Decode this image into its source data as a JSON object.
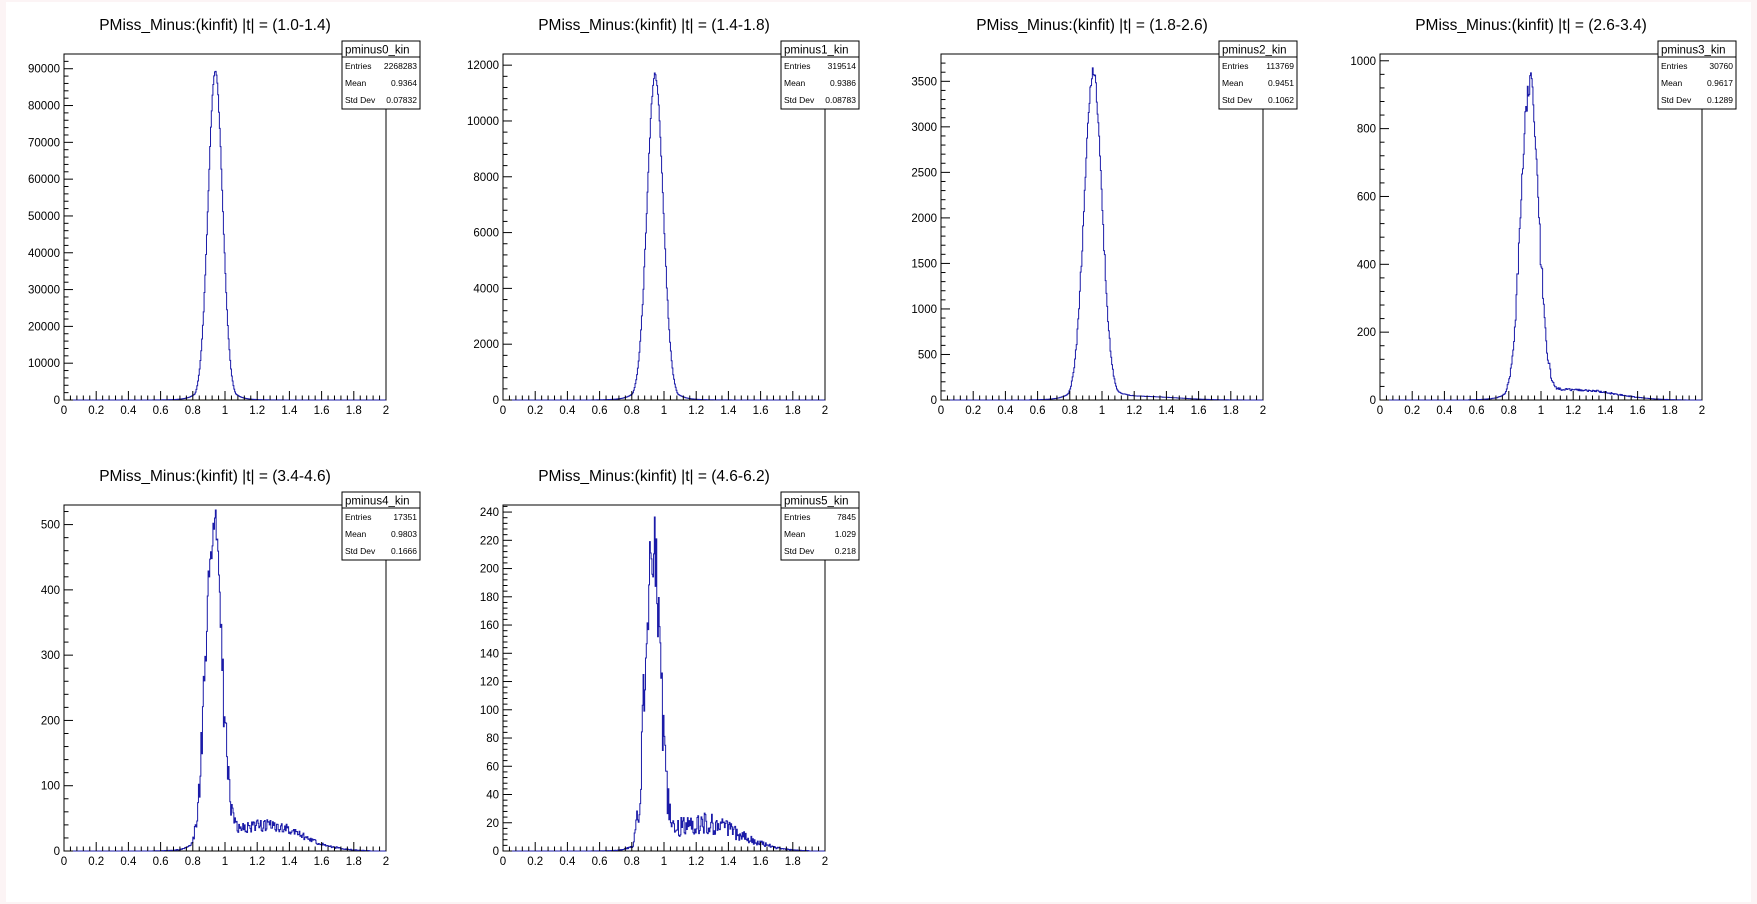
{
  "chart_data": [
    {
      "type": "histogram",
      "title": "PMiss_Minus:(kinfit) |t| = (1.0-1.4)",
      "xlabel": "",
      "ylabel": "",
      "xlim": [
        0,
        2
      ],
      "ylim": [
        0,
        94000
      ],
      "yticks": [
        0,
        10000,
        20000,
        30000,
        40000,
        50000,
        60000,
        70000,
        80000,
        90000
      ],
      "xticks": [
        0,
        0.2,
        0.4,
        0.6,
        0.8,
        1,
        1.2,
        1.4,
        1.6,
        1.8,
        2
      ],
      "peak": 0.94,
      "peak_value": 89000,
      "sigma": 0.045,
      "tail_height": 0,
      "noise": 0.01,
      "stats": {
        "name": "pminus0_kin",
        "entries": "2268283",
        "mean": "0.9364",
        "std_dev": "0.07832"
      }
    },
    {
      "type": "histogram",
      "title": "PMiss_Minus:(kinfit) |t| = (1.4-1.8)",
      "xlabel": "",
      "ylabel": "",
      "xlim": [
        0,
        2
      ],
      "ylim": [
        0,
        12400
      ],
      "yticks": [
        0,
        2000,
        4000,
        6000,
        8000,
        10000,
        12000
      ],
      "xticks": [
        0,
        0.2,
        0.4,
        0.6,
        0.8,
        1,
        1.2,
        1.4,
        1.6,
        1.8,
        2
      ],
      "peak": 0.945,
      "peak_value": 11650,
      "sigma": 0.05,
      "tail_height": 0,
      "noise": 0.015,
      "stats": {
        "name": "pminus1_kin",
        "entries": "319514",
        "mean": "0.9386",
        "std_dev": "0.08783"
      }
    },
    {
      "type": "histogram",
      "title": "PMiss_Minus:(kinfit) |t| = (1.8-2.6)",
      "xlabel": "",
      "ylabel": "",
      "xlim": [
        0,
        2
      ],
      "ylim": [
        0,
        3800
      ],
      "yticks": [
        0,
        500,
        1000,
        1500,
        2000,
        2500,
        3000,
        3500
      ],
      "xticks": [
        0,
        0.2,
        0.4,
        0.6,
        0.8,
        1,
        1.2,
        1.4,
        1.6,
        1.8,
        2
      ],
      "peak": 0.945,
      "peak_value": 3600,
      "sigma": 0.055,
      "tail_height": 0.01,
      "noise": 0.03,
      "stats": {
        "name": "pminus2_kin",
        "entries": "113769",
        "mean": "0.9451",
        "std_dev": "0.1062"
      }
    },
    {
      "type": "histogram",
      "title": "PMiss_Minus:(kinfit) |t| = (2.6-3.4)",
      "xlabel": "",
      "ylabel": "",
      "xlim": [
        0,
        2
      ],
      "ylim": [
        0,
        1020
      ],
      "yticks": [
        0,
        200,
        400,
        600,
        800,
        1000
      ],
      "xticks": [
        0,
        0.2,
        0.4,
        0.6,
        0.8,
        1,
        1.2,
        1.4,
        1.6,
        1.8,
        2
      ],
      "peak": 0.93,
      "peak_value": 930,
      "sigma": 0.055,
      "tail_height": 0.03,
      "noise": 0.07,
      "stats": {
        "name": "pminus3_kin",
        "entries": "30760",
        "mean": "0.9617",
        "std_dev": "0.1289"
      }
    },
    {
      "type": "histogram",
      "title": "PMiss_Minus:(kinfit) |t| = (3.4-4.6)",
      "xlabel": "",
      "ylabel": "",
      "xlim": [
        0,
        2
      ],
      "ylim": [
        0,
        530
      ],
      "yticks": [
        0,
        100,
        200,
        300,
        400,
        500
      ],
      "xticks": [
        0,
        0.2,
        0.4,
        0.6,
        0.8,
        1,
        1.2,
        1.4,
        1.6,
        1.8,
        2
      ],
      "peak": 0.93,
      "peak_value": 490,
      "sigma": 0.05,
      "tail_height": 0.08,
      "noise": 0.14,
      "stats": {
        "name": "pminus4_kin",
        "entries": "17351",
        "mean": "0.9803",
        "std_dev": "0.1666"
      }
    },
    {
      "type": "histogram",
      "title": "PMiss_Minus:(kinfit) |t| = (4.6-6.2)",
      "xlabel": "",
      "ylabel": "",
      "xlim": [
        0,
        2
      ],
      "ylim": [
        0,
        245
      ],
      "yticks": [
        0,
        20,
        40,
        60,
        80,
        100,
        120,
        140,
        160,
        180,
        200,
        220,
        240
      ],
      "xticks": [
        0,
        0.2,
        0.4,
        0.6,
        0.8,
        1,
        1.2,
        1.4,
        1.6,
        1.8,
        2
      ],
      "peak": 0.93,
      "peak_value": 215,
      "sigma": 0.045,
      "tail_height": 0.09,
      "noise": 0.22,
      "stats": {
        "name": "pminus5_kin",
        "entries": "7845",
        "mean": "1.029",
        "std_dev": "0.218"
      }
    }
  ],
  "colors": {
    "histogram_line": "#1b1ba8",
    "axis": "#000000",
    "background": "#ffffff",
    "page_border": "#fcf4f5"
  }
}
